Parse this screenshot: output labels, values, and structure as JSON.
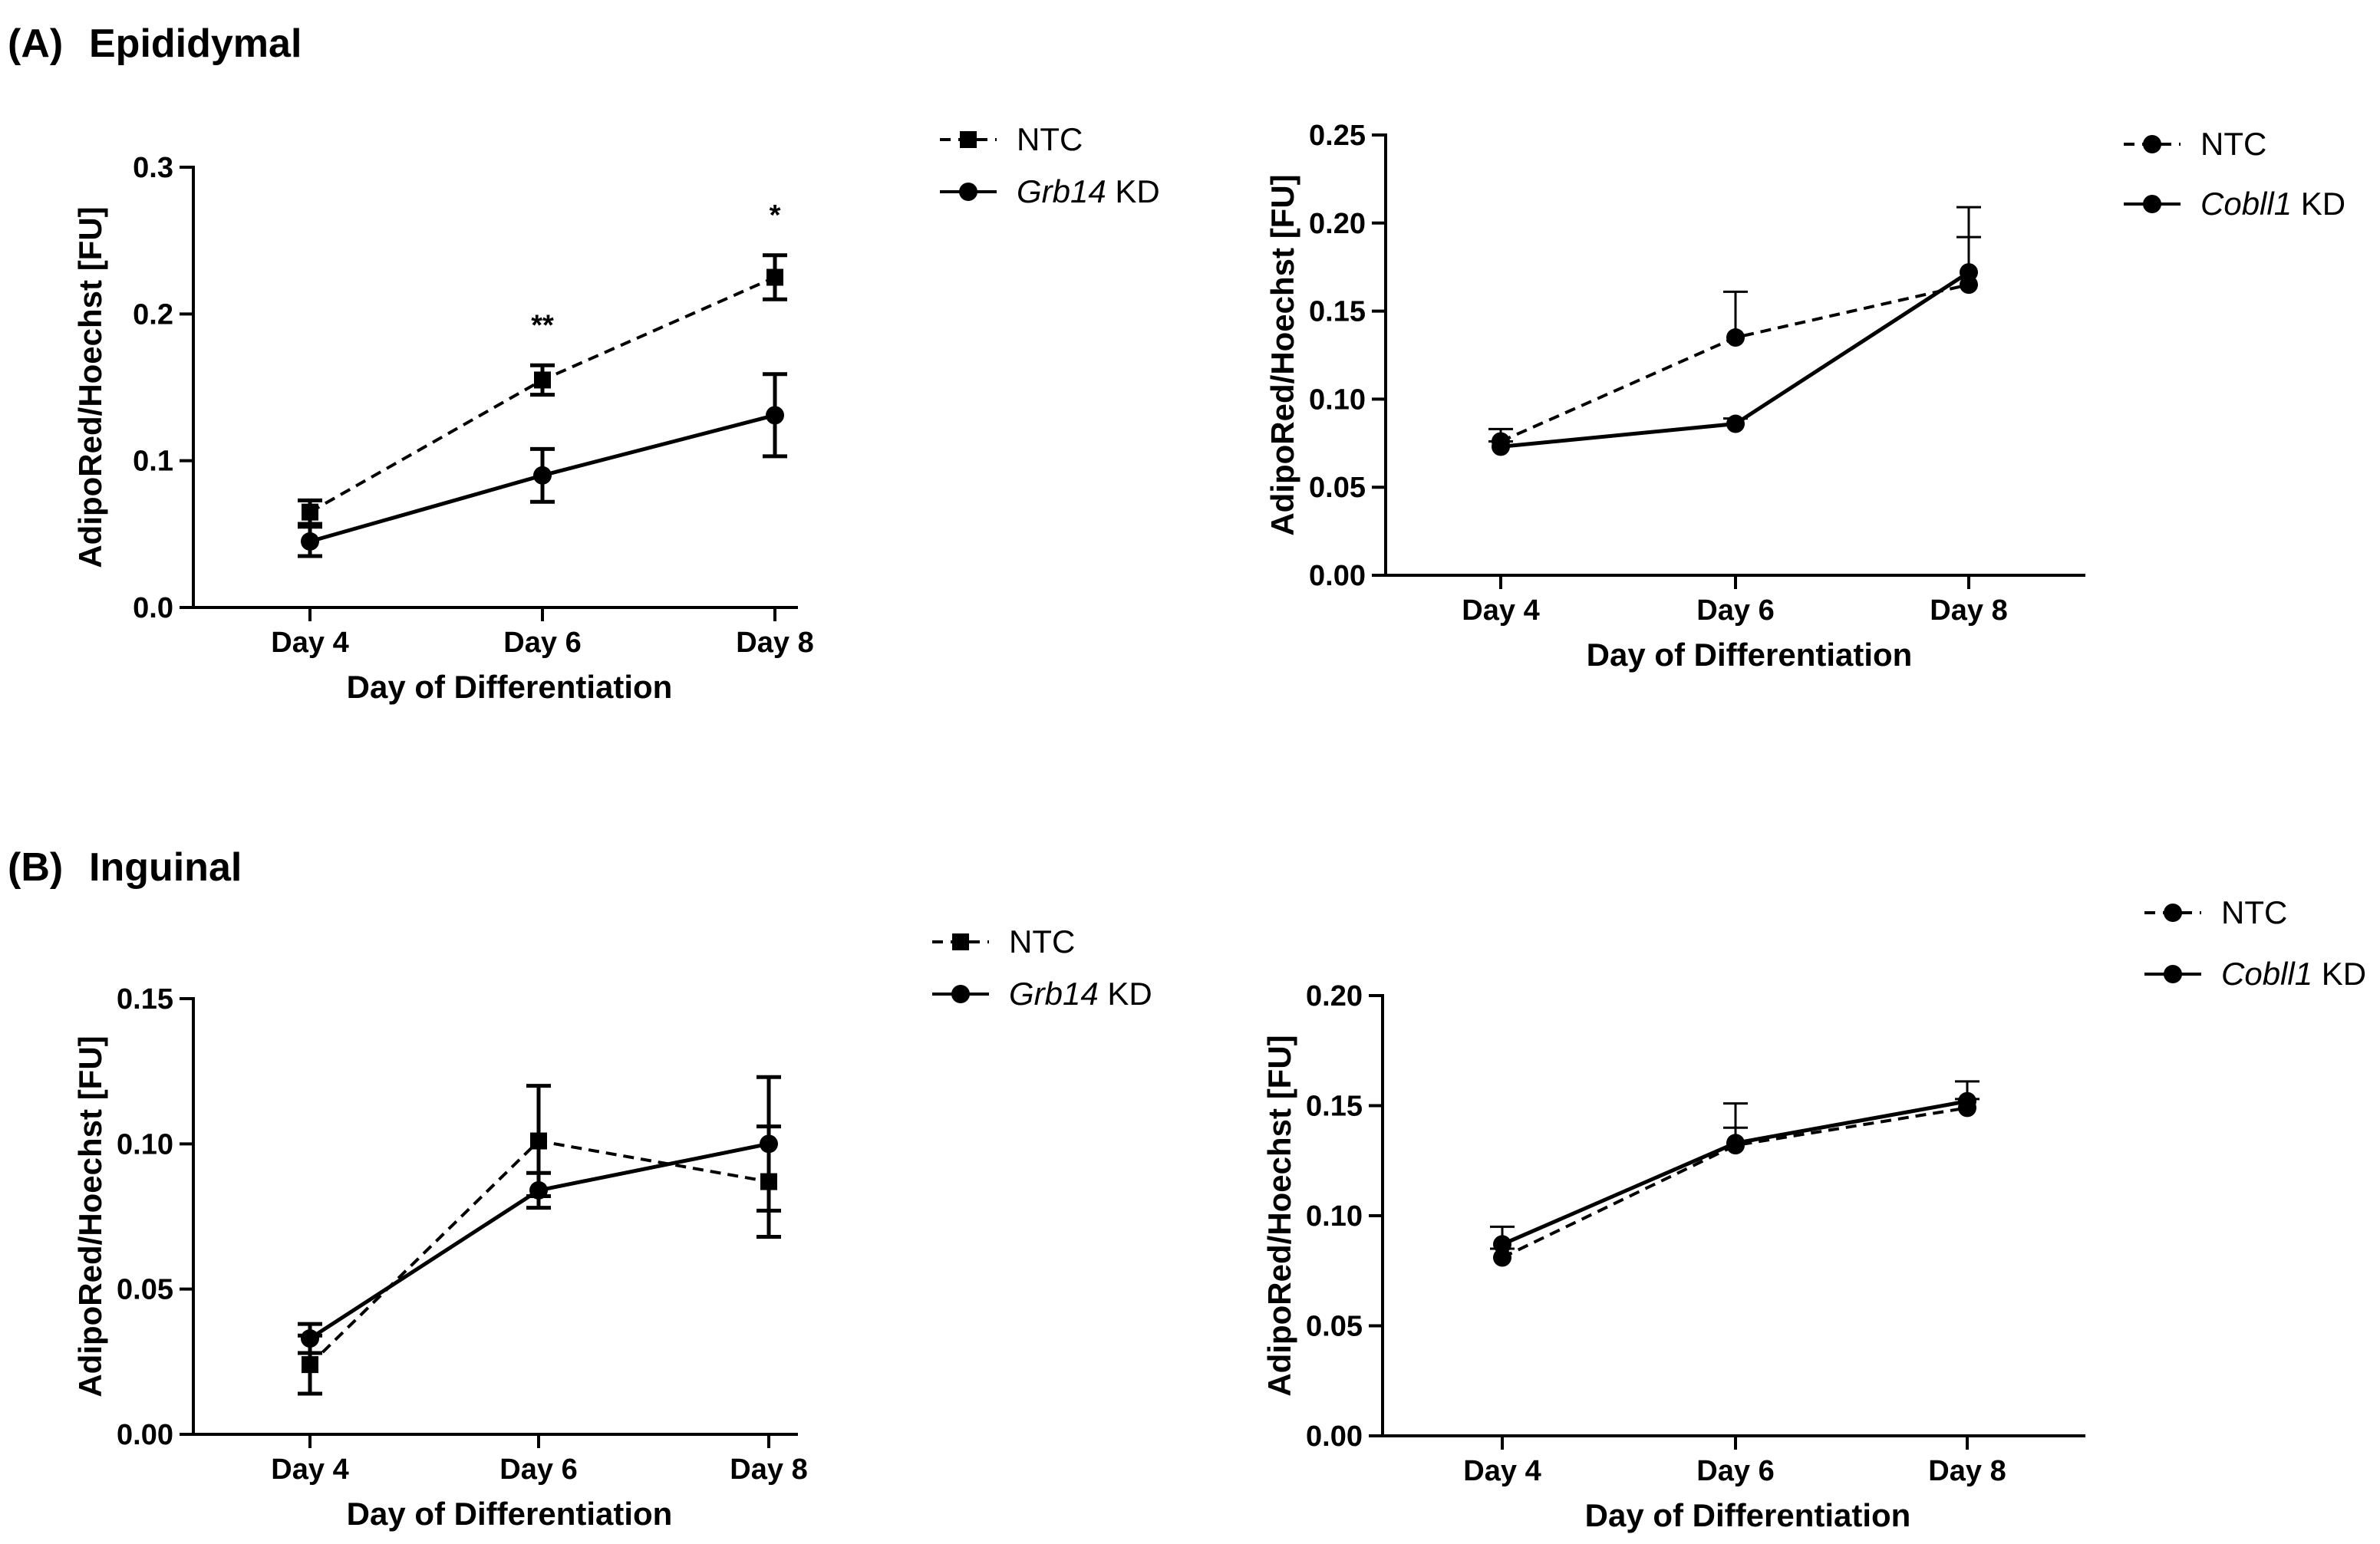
{
  "figure": {
    "panel_a_label": "(A)",
    "panel_a_title": "Epididymal",
    "panel_b_label": "(B)",
    "panel_b_title": "Inguinal"
  },
  "chart_data": [
    {
      "id": "a-grb14",
      "type": "line",
      "panel": "A",
      "title": "",
      "xlabel": "Day of Differentiation",
      "ylabel": "AdipoRed/Hoechst [FU]",
      "categories": [
        "Day 4",
        "Day 6",
        "Day 8"
      ],
      "ylim": [
        0,
        0.3
      ],
      "yticks": [
        "0.0",
        "0.1",
        "0.2",
        "0.3"
      ],
      "significance": [
        "",
        "**",
        "*"
      ],
      "legend_position": "top-right",
      "series": [
        {
          "name": "NTC",
          "name_italic": "",
          "name_suffix": "",
          "marker": "square",
          "dash": true,
          "values": [
            0.065,
            0.155,
            0.225
          ],
          "errors": [
            0.008,
            0.01,
            0.015
          ],
          "error_style": "bold"
        },
        {
          "name": "Grb14 KD",
          "name_italic": "Grb14",
          "name_suffix": " KD",
          "marker": "circle",
          "dash": false,
          "values": [
            0.045,
            0.09,
            0.131
          ],
          "errors": [
            0.01,
            0.018,
            0.028
          ],
          "error_style": "bold"
        }
      ]
    },
    {
      "id": "a-cobll1",
      "type": "line",
      "panel": "A",
      "title": "",
      "xlabel": "Day of Differentiation",
      "ylabel": "AdipoRed/Hoechst [FU]",
      "categories": [
        "Day 4",
        "Day 6",
        "Day 8"
      ],
      "ylim": [
        0,
        0.25
      ],
      "yticks": [
        "0.00",
        "0.05",
        "0.10",
        "0.15",
        "0.20",
        "0.25"
      ],
      "significance": [
        "",
        "",
        ""
      ],
      "legend_position": "top-right",
      "series": [
        {
          "name": "NTC",
          "name_italic": "",
          "name_suffix": "",
          "marker": "circle",
          "dash": true,
          "values": [
            0.076,
            0.135,
            0.165
          ],
          "errors": [
            0.007,
            0.026,
            0.044
          ],
          "error_style": "thin"
        },
        {
          "name": "Cobll1 KD",
          "name_italic": "Cobll1",
          "name_suffix": " KD",
          "marker": "circle",
          "dash": false,
          "values": [
            0.073,
            0.086,
            0.172
          ],
          "errors": [
            0.003,
            0.003,
            0.02
          ],
          "error_style": "thin"
        }
      ]
    },
    {
      "id": "b-grb14",
      "type": "line",
      "panel": "B",
      "title": "",
      "xlabel": "Day of Differentiation",
      "ylabel": "AdipoRed/Hoechst [FU]",
      "categories": [
        "Day 4",
        "Day 6",
        "Day 8"
      ],
      "ylim": [
        0,
        0.15
      ],
      "yticks": [
        "0.00",
        "0.05",
        "0.10",
        "0.15"
      ],
      "significance": [
        "",
        "",
        ""
      ],
      "legend_position": "top-right",
      "series": [
        {
          "name": "NTC",
          "name_italic": "",
          "name_suffix": "",
          "marker": "square",
          "dash": true,
          "values": [
            0.024,
            0.101,
            0.087
          ],
          "errors": [
            0.01,
            0.019,
            0.019
          ],
          "error_style": "bold"
        },
        {
          "name": "Grb14 KD",
          "name_italic": "Grb14",
          "name_suffix": " KD",
          "marker": "circle",
          "dash": false,
          "values": [
            0.033,
            0.084,
            0.1
          ],
          "errors": [
            0.005,
            0.006,
            0.023
          ],
          "error_style": "bold"
        }
      ]
    },
    {
      "id": "b-cobll1",
      "type": "line",
      "panel": "B",
      "title": "",
      "xlabel": "Day of Differentiation",
      "ylabel": "AdipoRed/Hoechst [FU]",
      "categories": [
        "Day 4",
        "Day 6",
        "Day 8"
      ],
      "ylim": [
        0,
        0.2
      ],
      "yticks": [
        "0.00",
        "0.05",
        "0.10",
        "0.15",
        "0.20"
      ],
      "significance": [
        "",
        "",
        ""
      ],
      "legend_position": "top-right",
      "series": [
        {
          "name": "NTC",
          "name_italic": "",
          "name_suffix": "",
          "marker": "circle",
          "dash": true,
          "values": [
            0.081,
            0.132,
            0.149
          ],
          "errors": [
            0.004,
            0.008,
            0.004
          ],
          "error_style": "thin"
        },
        {
          "name": "Cobll1 KD",
          "name_italic": "Cobll1",
          "name_suffix": " KD",
          "marker": "circle",
          "dash": false,
          "values": [
            0.087,
            0.133,
            0.152
          ],
          "errors": [
            0.008,
            0.018,
            0.009
          ],
          "error_style": "thin"
        }
      ]
    }
  ]
}
